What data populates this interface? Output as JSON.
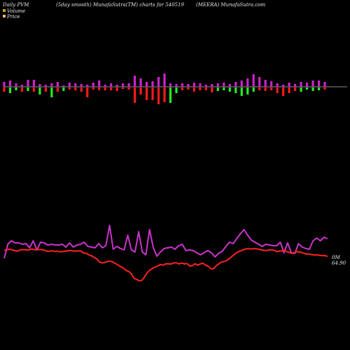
{
  "header": {
    "left": "Daily PVM",
    "right": "(MEERA) MunafaSutra.com"
  },
  "chart_data": {
    "type": "line",
    "title": "(5day smooth) MunafaSutra(TM) charts for 540519",
    "series": [
      {
        "name": "Volume",
        "color": "#cc33cc"
      },
      {
        "name": "Price",
        "color": "#ff2222"
      }
    ],
    "end_labels": {
      "volume": "0M",
      "price": "64.90"
    },
    "colors": {
      "pos_bar": "#cc22cc",
      "neg_bar": "#ff1a1a",
      "pos_bar2": "#22ee22",
      "volume_line": "#cc33cc",
      "price_line": "#ff2222",
      "baseline": "#bbbbbb",
      "legend_volume": "#d4a020",
      "legend_price": "#e8b36a"
    },
    "bars": [
      {
        "up": 7,
        "down": 6,
        "dn_color": "neg"
      },
      {
        "up": 9,
        "down": 8,
        "dn_color": "pos2"
      },
      {
        "up": 5,
        "down": 4,
        "dn_color": "pos2"
      },
      {
        "up": 3,
        "down": 6,
        "dn_color": "neg"
      },
      {
        "up": 10,
        "down": 5,
        "dn_color": "pos2"
      },
      {
        "up": 10,
        "down": 6,
        "dn_color": "neg"
      },
      {
        "up": 4,
        "down": 10,
        "dn_color": "pos2"
      },
      {
        "up": 3,
        "down": 6,
        "dn_color": "neg"
      },
      {
        "up": 5,
        "down": 14,
        "dn_color": "pos2"
      },
      {
        "up": 7,
        "down": 6,
        "dn_color": "neg"
      },
      {
        "up": 2,
        "down": 5,
        "dn_color": "pos2"
      },
      {
        "up": 6,
        "down": 3,
        "dn_color": "neg"
      },
      {
        "up": 5,
        "down": 4,
        "dn_color": "neg"
      },
      {
        "up": 4,
        "down": 6,
        "dn_color": "neg"
      },
      {
        "up": 3,
        "down": 14,
        "dn_color": "neg"
      },
      {
        "up": 6,
        "down": 3,
        "dn_color": "neg"
      },
      {
        "up": 9,
        "down": 4,
        "dn_color": "neg"
      },
      {
        "up": 3,
        "down": 4,
        "dn_color": "neg"
      },
      {
        "up": 5,
        "down": 4,
        "dn_color": "neg"
      },
      {
        "up": 3,
        "down": 5,
        "dn_color": "neg"
      },
      {
        "up": 5,
        "down": 2,
        "dn_color": "neg"
      },
      {
        "up": 5,
        "down": 3,
        "dn_color": "neg"
      },
      {
        "up": 16,
        "down": 22,
        "dn_color": "neg"
      },
      {
        "up": 12,
        "down": 10,
        "dn_color": "neg"
      },
      {
        "up": 7,
        "down": 18,
        "dn_color": "neg"
      },
      {
        "up": 8,
        "down": 18,
        "dn_color": "neg"
      },
      {
        "up": 14,
        "down": 24,
        "dn_color": "neg"
      },
      {
        "up": 19,
        "down": 21,
        "dn_color": "neg"
      },
      {
        "up": 5,
        "down": 22,
        "dn_color": "pos2"
      },
      {
        "up": 4,
        "down": 8,
        "dn_color": "pos2"
      },
      {
        "up": 5,
        "down": 4,
        "dn_color": "neg"
      },
      {
        "up": 4,
        "down": 3,
        "dn_color": "neg"
      },
      {
        "up": 6,
        "down": 6,
        "dn_color": "neg"
      },
      {
        "up": 5,
        "down": 4,
        "dn_color": "neg"
      },
      {
        "up": 3,
        "down": 4,
        "dn_color": "neg"
      },
      {
        "up": 4,
        "down": 7,
        "dn_color": "neg"
      },
      {
        "up": 5,
        "down": 5,
        "dn_color": "pos2"
      },
      {
        "up": 6,
        "down": 4,
        "dn_color": "pos2"
      },
      {
        "up": 4,
        "down": 6,
        "dn_color": "pos2"
      },
      {
        "up": 7,
        "down": 8,
        "dn_color": "pos2"
      },
      {
        "up": 9,
        "down": 12,
        "dn_color": "pos2"
      },
      {
        "up": 12,
        "down": 10,
        "dn_color": "pos2"
      },
      {
        "up": 18,
        "down": 6,
        "dn_color": "pos2"
      },
      {
        "up": 14,
        "down": 4,
        "dn_color": "neg"
      },
      {
        "up": 10,
        "down": 5,
        "dn_color": "neg"
      },
      {
        "up": 8,
        "down": 4,
        "dn_color": "neg"
      },
      {
        "up": 5,
        "down": 8,
        "dn_color": "neg"
      },
      {
        "up": 3,
        "down": 12,
        "dn_color": "neg"
      },
      {
        "up": 6,
        "down": 8,
        "dn_color": "neg"
      },
      {
        "up": 4,
        "down": 5,
        "dn_color": "neg"
      },
      {
        "up": 7,
        "down": 6,
        "dn_color": "pos2"
      },
      {
        "up": 6,
        "down": 3,
        "dn_color": "pos2"
      },
      {
        "up": 9,
        "down": 5,
        "dn_color": "pos2"
      },
      {
        "up": 9,
        "down": 4,
        "dn_color": "pos2"
      },
      {
        "up": 7,
        "down": 3,
        "dn_color": "neg"
      }
    ],
    "volume_line": [
      5,
      25,
      30,
      27,
      27,
      25,
      26,
      20,
      30,
      17,
      28,
      27,
      24,
      25,
      24,
      24,
      25,
      21,
      27,
      21,
      24,
      25,
      28,
      22,
      21,
      20,
      26,
      20,
      23,
      52,
      18,
      22,
      19,
      17,
      38,
      17,
      14,
      43,
      14,
      10,
      46,
      21,
      8,
      14,
      19,
      20,
      21,
      18,
      23,
      25,
      16,
      17,
      16,
      13,
      10,
      13,
      16,
      13,
      7,
      12,
      15,
      22,
      28,
      26,
      33,
      40,
      46,
      38,
      31,
      28,
      25,
      22,
      25,
      24,
      23,
      23,
      28,
      13,
      27,
      13,
      12,
      26,
      21,
      19,
      18,
      30,
      34,
      30,
      35,
      33
    ],
    "price_line": [
      -6,
      -3,
      0,
      -4,
      -8,
      -12,
      -4,
      -2,
      -3,
      -5,
      0,
      0,
      -4,
      -2,
      -2,
      -4,
      -12,
      -12,
      -9,
      -13,
      -11,
      -15,
      -14,
      -11,
      -9,
      -7,
      -10,
      -11,
      -10,
      -10,
      -23,
      -23,
      -33,
      -38,
      -48,
      -56,
      -74,
      -78,
      -76,
      -70,
      -68,
      -74,
      -81,
      -91,
      -100,
      -108,
      -122,
      -127,
      -142,
      -167,
      -172,
      -181,
      -177,
      -157,
      -133,
      -119,
      -109,
      -102,
      -95,
      -87,
      -91,
      -83,
      -84,
      -85,
      -78,
      -78,
      -84,
      -79,
      -84,
      -82,
      -96,
      -94,
      -83,
      -91,
      -84,
      -80,
      -92,
      -97,
      -111,
      -112,
      -94,
      -83,
      -73,
      -70,
      -64,
      -53,
      -40,
      -27,
      -17,
      -11,
      -4,
      1,
      3,
      1,
      3,
      3,
      0,
      -4,
      -6,
      -8,
      -4,
      -3,
      -7,
      -14,
      -10,
      -9,
      -8,
      -16,
      -21,
      -24,
      -14,
      -16,
      -17,
      -23,
      -28,
      -27,
      -31,
      -33,
      -32,
      -35,
      -37,
      -36,
      -42
    ]
  }
}
